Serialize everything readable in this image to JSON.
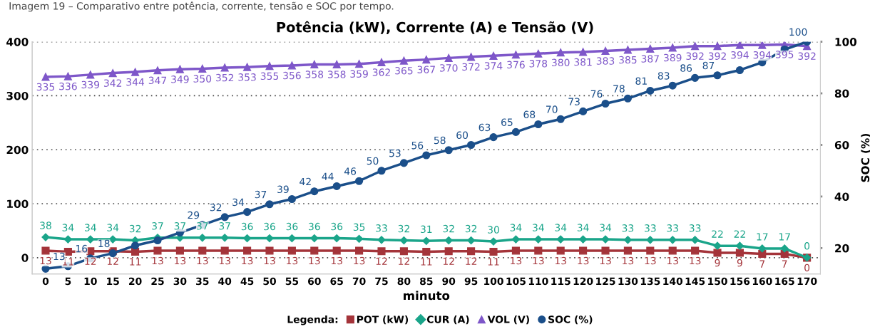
{
  "chart_data": {
    "type": "line",
    "title": "Potência (kW), Corrente (A) e Tensão (V)",
    "annotations": [
      "Imagem 19 – Comparativo entre potência, corrente, tensão e SOC por tempo."
    ],
    "xlabel": "minuto",
    "y2label": "SOC (%)",
    "legend_title": "Legenda:",
    "legend": "bottom",
    "grid": "y",
    "data_labels": true,
    "categories": [
      "0",
      "5",
      "10",
      "15",
      "20",
      "25",
      "30",
      "35",
      "40",
      "45",
      "50",
      "55",
      "60",
      "65",
      "70",
      "75",
      "80",
      "85",
      "90",
      "95",
      "100",
      "105",
      "110",
      "115",
      "120",
      "125",
      "130",
      "135",
      "140",
      "145",
      "150",
      "156",
      "160",
      "165",
      "170"
    ],
    "ylim": [
      -30,
      400
    ],
    "yticks": [
      0,
      100,
      200,
      300,
      400
    ],
    "y2lim": [
      10,
      100
    ],
    "y2ticks": [
      20,
      40,
      60,
      80,
      100
    ],
    "series": [
      {
        "name": "POT (kW)",
        "color": "#a4343a",
        "marker": "square",
        "values": [
          13,
          11,
          12,
          12,
          11,
          13,
          13,
          13,
          13,
          13,
          13,
          13,
          13,
          13,
          13,
          12,
          12,
          11,
          12,
          12,
          11,
          13,
          13,
          13,
          13,
          13,
          13,
          13,
          13,
          13,
          9,
          9,
          7,
          7,
          0
        ]
      },
      {
        "name": "CUR (A)",
        "color": "#1aa58a",
        "marker": "diamond",
        "values": [
          38,
          34,
          34,
          34,
          32,
          37,
          37,
          37,
          37,
          36,
          36,
          36,
          36,
          36,
          35,
          33,
          32,
          31,
          32,
          32,
          30,
          34,
          34,
          34,
          34,
          34,
          33,
          33,
          33,
          33,
          22,
          22,
          17,
          17,
          0
        ]
      },
      {
        "name": "VOL (V)",
        "color": "#7e57c9",
        "marker": "triangle",
        "values": [
          335,
          336,
          339,
          342,
          344,
          347,
          349,
          350,
          352,
          353,
          355,
          356,
          358,
          358,
          359,
          362,
          365,
          367,
          370,
          372,
          374,
          376,
          378,
          380,
          381,
          383,
          385,
          387,
          389,
          392,
          392,
          394,
          394,
          395,
          392
        ]
      },
      {
        "name": "SOC (%)",
        "color": "#1b4f8a",
        "marker": "circle",
        "axis": "y2",
        "values": [
          12,
          13,
          16,
          18,
          21,
          23,
          26,
          29,
          32,
          34,
          37,
          39,
          42,
          44,
          46,
          50,
          53,
          56,
          58,
          60,
          63,
          65,
          68,
          70,
          73,
          76,
          78,
          81,
          83,
          86,
          87,
          89,
          92,
          97,
          100
        ],
        "value_labels": [
          null,
          "13",
          "16",
          "18",
          null,
          null,
          null,
          "29",
          "32",
          "34",
          "37",
          "39",
          "42",
          "44",
          "46",
          "50",
          "53",
          "56",
          "58",
          "60",
          "63",
          "65",
          "68",
          "70",
          "73",
          "76",
          "78",
          "81",
          "83",
          "86",
          "87",
          null,
          null,
          null,
          "100"
        ]
      }
    ]
  }
}
